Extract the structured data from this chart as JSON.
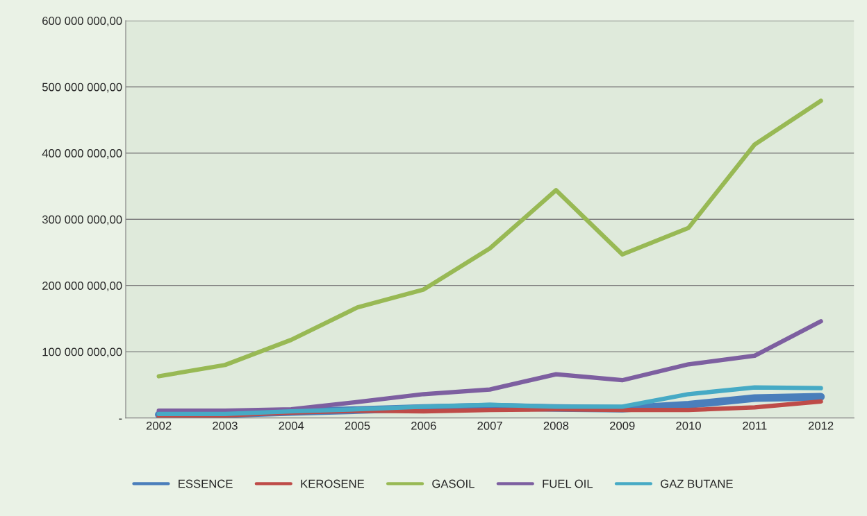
{
  "chart_data": {
    "type": "line",
    "categories": [
      "2002",
      "2003",
      "2004",
      "2005",
      "2006",
      "2007",
      "2008",
      "2009",
      "2010",
      "2011",
      "2012"
    ],
    "series": [
      {
        "name": "ESSENCE",
        "color": "#4a7ebb",
        "values": [
          5000000,
          6000000,
          9000000,
          12000000,
          15000000,
          17000000,
          15000000,
          14000000,
          20000000,
          30000000,
          32000000
        ]
      },
      {
        "name": "KEROSENE",
        "color": "#be4b48",
        "values": [
          2000000,
          4000000,
          8000000,
          11000000,
          10000000,
          12000000,
          13000000,
          12000000,
          12000000,
          16000000,
          25000000
        ]
      },
      {
        "name": "GASOIL",
        "color": "#98b954",
        "values": [
          63000000,
          80000000,
          118000000,
          167000000,
          194000000,
          256000000,
          344000000,
          247000000,
          287000000,
          413000000,
          479000000
        ]
      },
      {
        "name": "FUEL OIL",
        "color": "#7d5fa0",
        "values": [
          11000000,
          11000000,
          13000000,
          24000000,
          36000000,
          43000000,
          66000000,
          57000000,
          81000000,
          94000000,
          146000000
        ]
      },
      {
        "name": "GAZ BUTANE",
        "color": "#46aac5",
        "values": [
          6000000,
          6000000,
          10000000,
          13000000,
          17000000,
          20000000,
          17000000,
          17000000,
          36000000,
          46000000,
          45000000
        ]
      }
    ],
    "ylim": [
      0,
      600000000
    ],
    "yticks": [
      {
        "value": 0,
        "label": "-"
      },
      {
        "value": 100000000,
        "label": "100 000 000,00"
      },
      {
        "value": 200000000,
        "label": "200 000 000,00"
      },
      {
        "value": 300000000,
        "label": "300 000 000,00"
      },
      {
        "value": 400000000,
        "label": "400 000 000,00"
      },
      {
        "value": 500000000,
        "label": "500 000 000,00"
      },
      {
        "value": 600000000,
        "label": "600 000 000,00"
      }
    ],
    "grid": "y",
    "legend": "bottom",
    "marker": "none",
    "line_style": "solid"
  }
}
